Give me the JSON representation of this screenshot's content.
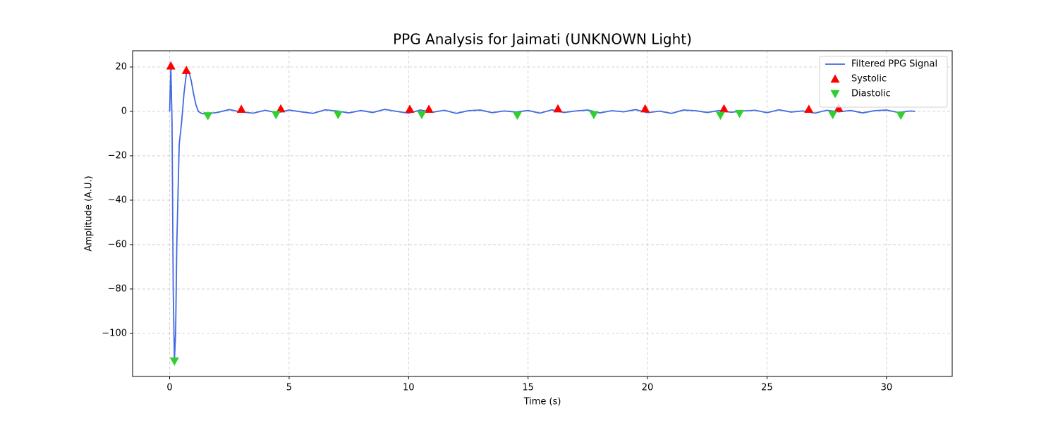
{
  "chart_data": {
    "type": "line",
    "title": "PPG Analysis for Jaimati (UNKNOWN Light)",
    "x_label": "Time (s)",
    "y_label": "Amplitude (A.U.)",
    "xlim": [
      -1.55,
      32.75
    ],
    "ylim": [
      -119.4,
      27.3
    ],
    "xticks": [
      0,
      5,
      10,
      15,
      20,
      25,
      30
    ],
    "yticks": [
      {
        "value": -100,
        "label": "−100"
      },
      {
        "value": -80,
        "label": "−80"
      },
      {
        "value": -60,
        "label": "−60"
      },
      {
        "value": -40,
        "label": "−40"
      },
      {
        "value": -20,
        "label": "−20"
      },
      0,
      20
    ],
    "grid": true,
    "legend": "upper right",
    "series": [
      {
        "name": "Filtered PPG Signal",
        "type": "line",
        "color": "#4169e1",
        "x": [
          0,
          0.05,
          0.1,
          0.15,
          0.2,
          0.25,
          0.3,
          0.4,
          0.5,
          0.6,
          0.7,
          0.8,
          0.9,
          1.0,
          1.1,
          1.2,
          1.35,
          1.5,
          2.0,
          2.5,
          3.0,
          3.5,
          4.0,
          4.5,
          5.0,
          5.5,
          6.0,
          6.5,
          7.0,
          7.5,
          8.0,
          8.5,
          9.0,
          9.5,
          10.0,
          10.5,
          11.0,
          11.5,
          12.0,
          12.5,
          13.0,
          13.5,
          14.0,
          14.5,
          15.0,
          15.5,
          16.0,
          16.5,
          17.0,
          17.5,
          18.0,
          18.5,
          19.0,
          19.5,
          20.0,
          20.5,
          21.0,
          21.5,
          22.0,
          22.5,
          23.0,
          23.5,
          24.0,
          24.5,
          25.0,
          25.5,
          26.0,
          26.5,
          27.0,
          27.5,
          28.0,
          28.5,
          29.0,
          29.5,
          30.0,
          30.5,
          31.0,
          31.2
        ],
        "values": [
          0,
          20,
          -5,
          -80,
          -112,
          -100,
          -60,
          -15,
          -5,
          8,
          17,
          18,
          14,
          8,
          3,
          0,
          -1,
          -1.2,
          -0.5,
          0.8,
          -0.3,
          -0.8,
          0.5,
          -0.6,
          0.6,
          -0.2,
          -0.9,
          0.7,
          0.2,
          -0.7,
          0.4,
          -0.5,
          0.9,
          0,
          -0.8,
          0.6,
          -0.4,
          0.5,
          -0.9,
          0.3,
          0.6,
          -0.6,
          0.2,
          -0.3,
          0.4,
          -0.8,
          0.7,
          -0.5,
          0.2,
          0.6,
          -0.7,
          0.3,
          -0.2,
          0.8,
          -0.6,
          0.1,
          -0.9,
          0.6,
          0.3,
          -0.5,
          0.4,
          -0.4,
          0.2,
          0.5,
          -0.6,
          0.7,
          -0.3,
          0.2,
          -0.8,
          0.5,
          -0.2,
          0.4,
          -0.7,
          0.3,
          0.6,
          -0.5,
          0.2,
          0
        ]
      },
      {
        "name": "Systolic",
        "type": "scatter",
        "marker": "triangle-up",
        "color": "#ff0000",
        "x": [
          0.05,
          0.7,
          3.0,
          4.65,
          10.05,
          10.85,
          16.25,
          19.9,
          23.2,
          26.75,
          28.0
        ],
        "values": [
          20.5,
          18.5,
          1,
          1.2,
          1,
          1,
          1.2,
          1.2,
          1.2,
          1,
          1.5
        ]
      },
      {
        "name": "Diastolic",
        "type": "scatter",
        "marker": "triangle-down",
        "color": "#32cd32",
        "x": [
          0.2,
          1.6,
          4.45,
          7.05,
          10.55,
          14.55,
          17.75,
          23.05,
          23.85,
          27.75,
          30.6
        ],
        "values": [
          -112.5,
          -2,
          -1.5,
          -1.5,
          -1.5,
          -1.8,
          -1.5,
          -1.8,
          -1,
          -1.5,
          -1.8
        ]
      }
    ]
  }
}
